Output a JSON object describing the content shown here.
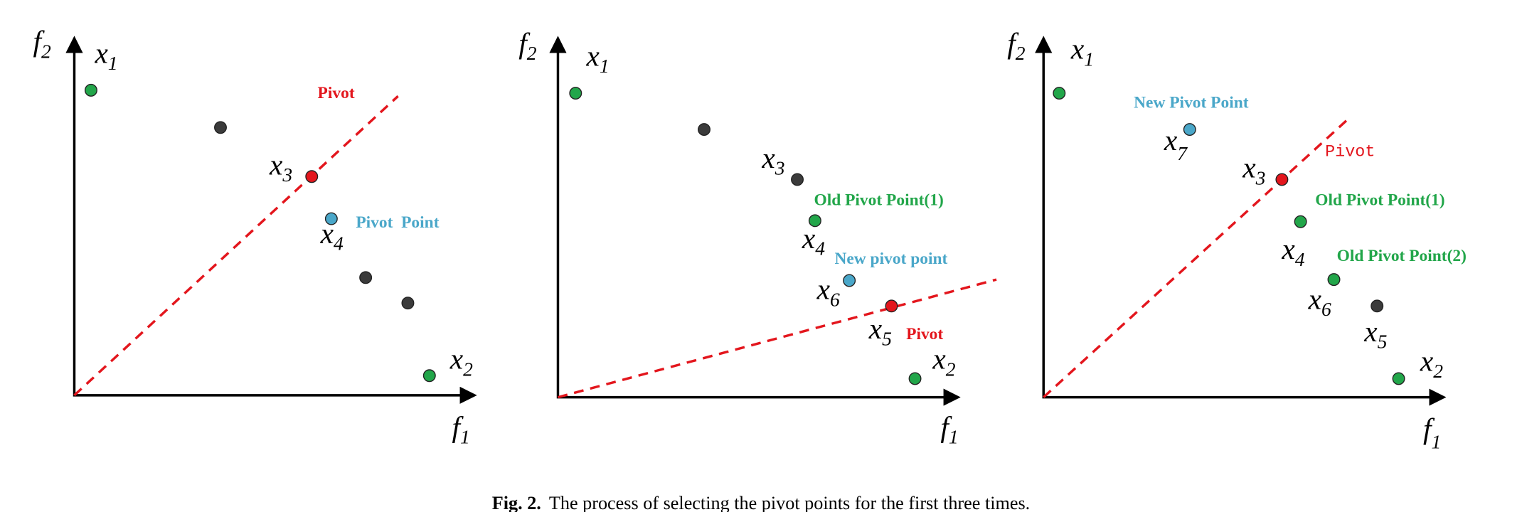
{
  "panels": [
    {
      "y_axis": {
        "label": "f",
        "sub": "2"
      },
      "x_axis": {
        "label": "f",
        "sub": "1"
      },
      "points": [
        {
          "label": "x",
          "sub": "1"
        },
        {
          "label": "x",
          "sub": "3"
        },
        {
          "label": "x",
          "sub": "4"
        },
        {
          "label": "x",
          "sub": "2"
        }
      ],
      "annotations": [
        "Pivot",
        "Pivot  Point"
      ]
    },
    {
      "y_axis": {
        "label": "f",
        "sub": "2"
      },
      "x_axis": {
        "label": "f",
        "sub": "1"
      },
      "points": [
        {
          "label": "x",
          "sub": "1"
        },
        {
          "label": "x",
          "sub": "3"
        },
        {
          "label": "x",
          "sub": "4"
        },
        {
          "label": "x",
          "sub": "6"
        },
        {
          "label": "x",
          "sub": "5"
        },
        {
          "label": "x",
          "sub": "2"
        }
      ],
      "annotations": [
        "Old Pivot Point(1)",
        "New pivot point",
        "Pivot"
      ]
    },
    {
      "y_axis": {
        "label": "f",
        "sub": "2"
      },
      "x_axis": {
        "label": "f",
        "sub": "1"
      },
      "points": [
        {
          "label": "x",
          "sub": "1"
        },
        {
          "label": "x",
          "sub": "7"
        },
        {
          "label": "x",
          "sub": "3"
        },
        {
          "label": "x",
          "sub": "4"
        },
        {
          "label": "x",
          "sub": "6"
        },
        {
          "label": "x",
          "sub": "5"
        },
        {
          "label": "x",
          "sub": "2"
        }
      ],
      "annotations": [
        "New Pivot Point",
        "Pivot",
        "Old Pivot Point(1)",
        "Old Pivot Point(2)"
      ]
    }
  ],
  "caption": {
    "label": "Fig. 2.",
    "text": "The process of selecting the pivot points for the first three times."
  }
}
